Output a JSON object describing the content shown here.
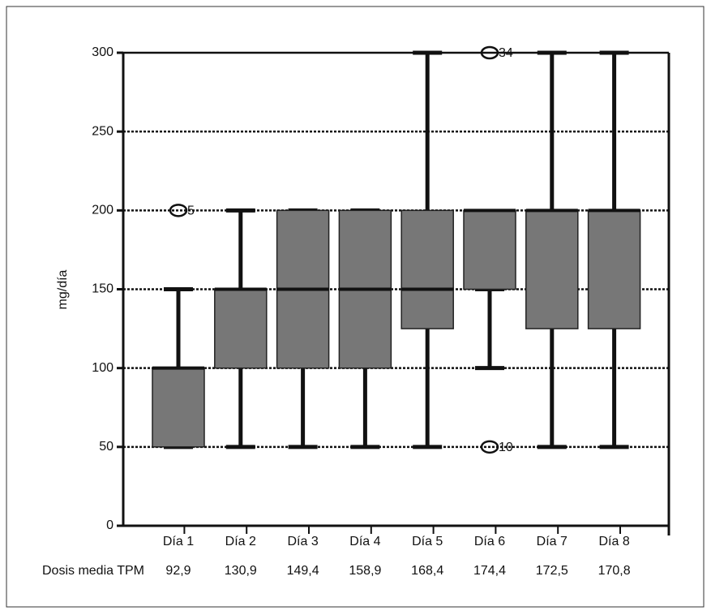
{
  "chart_data": {
    "type": "box",
    "y_label": "mg/día",
    "categories": [
      "Día 1",
      "Día 2",
      "Día 3",
      "Día 4",
      "Día 5",
      "Día 6",
      "Día 7",
      "Día 8"
    ],
    "min": [
      50,
      50,
      50,
      50,
      50,
      100,
      50,
      50
    ],
    "q1": [
      50,
      100,
      100,
      100,
      125,
      150,
      125,
      125
    ],
    "median": [
      100,
      150,
      150,
      150,
      150,
      200,
      200,
      200
    ],
    "q3": [
      100,
      150,
      200,
      200,
      200,
      200,
      200,
      200
    ],
    "max": [
      150,
      200,
      200,
      200,
      300,
      150,
      300,
      300
    ],
    "outliers": [
      {
        "category": 0,
        "value": 200,
        "label": "5"
      },
      {
        "category": 5,
        "value": 300,
        "label": "34"
      },
      {
        "category": 5,
        "value": 50,
        "label": "10"
      }
    ],
    "color": "#777777",
    "ylim": [
      0,
      300
    ],
    "yticks": [
      0,
      50,
      100,
      150,
      200,
      250,
      300
    ],
    "grid": true,
    "dose_row": {
      "label": "Dosis media TPM",
      "values": [
        "92,9",
        "130,9",
        "149,4",
        "158,9",
        "168,4",
        "174,4",
        "172,5",
        "170,8"
      ]
    }
  }
}
